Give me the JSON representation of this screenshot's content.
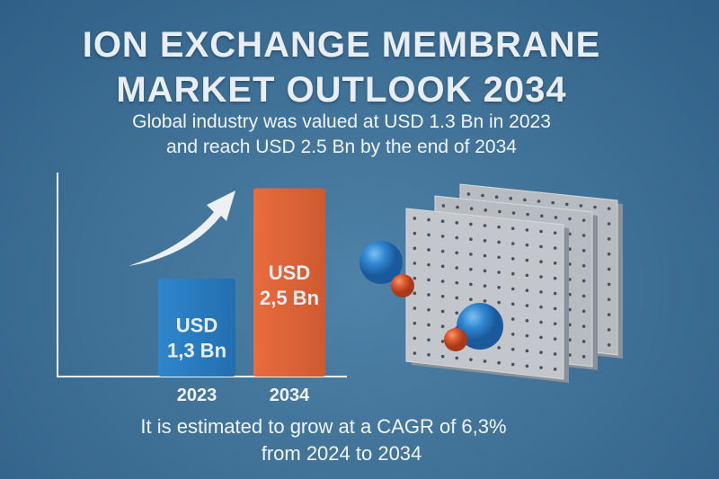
{
  "title_line1": "ION EXCHANGE MEMBRANE",
  "title_line2": "MARKET OUTLOOK 2034",
  "subtitle_line1": "Global industry was valued at USD 1.3 Bn in 2023",
  "subtitle_line2": "and reach USD 2.5 Bn by the end of 2034",
  "footer_line1": "It is estimated to grow at a CAGR of 6,3%",
  "footer_line2": "from 2024 to 2034",
  "colors": {
    "bar_2023": "#2a7fc4",
    "bar_2034": "#e0653a",
    "background": "#3e6f95"
  },
  "chart_data": {
    "type": "bar",
    "categories": [
      "2023",
      "2034"
    ],
    "values": [
      1.3,
      2.5
    ],
    "data_labels": [
      [
        "USD",
        "1,3 Bn"
      ],
      [
        "USD",
        "2,5 Bn"
      ]
    ],
    "ylim": [
      0,
      2.6
    ],
    "grid": false,
    "annotation": "upward-trend-arrow"
  },
  "illustration": "membrane-panels-with-ions-icon"
}
